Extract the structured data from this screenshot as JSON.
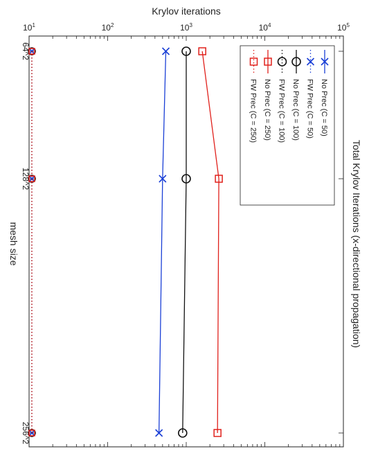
{
  "chart_data": {
    "type": "line",
    "title": "Total Krylov Iterations (x-directional propagation)",
    "xlabel": "mesh size",
    "ylabel": "Krylov iterations",
    "y_scale": "log",
    "ylim": [
      10,
      100000
    ],
    "y_ticks": [
      {
        "value": 10,
        "base": "10",
        "exp": "1"
      },
      {
        "value": 100,
        "base": "10",
        "exp": "2"
      },
      {
        "value": 1000,
        "base": "10",
        "exp": "3"
      },
      {
        "value": 10000,
        "base": "10",
        "exp": "4"
      },
      {
        "value": 100000,
        "base": "10",
        "exp": "5"
      }
    ],
    "categories": [
      "64^2",
      "128^2",
      "256^2"
    ],
    "grid": false,
    "legend_position": "top-right",
    "series": [
      {
        "name": "No Prec (C = 50)",
        "color": "#1a3fd6",
        "line": "solid",
        "marker": "x",
        "values": [
          550,
          500,
          450
        ]
      },
      {
        "name": "FW Prec (C = 50)",
        "color": "#1a3fd6",
        "line": "dotted",
        "marker": "x",
        "values": [
          4,
          4,
          4
        ]
      },
      {
        "name": "No Prec (C = 100)",
        "color": "#111111",
        "line": "solid",
        "marker": "circle",
        "values": [
          1000,
          1000,
          900
        ]
      },
      {
        "name": "FW Prec (C = 100)",
        "color": "#111111",
        "line": "dotted",
        "marker": "circle",
        "values": [
          4,
          4,
          4
        ]
      },
      {
        "name": "No Prec (C = 250)",
        "color": "#e0201b",
        "line": "solid",
        "marker": "square",
        "values": [
          1600,
          2600,
          2500
        ]
      },
      {
        "name": "FW Prec (C = 250)",
        "color": "#e0201b",
        "line": "dotted",
        "marker": "square",
        "values": [
          4,
          4,
          4
        ]
      }
    ]
  }
}
